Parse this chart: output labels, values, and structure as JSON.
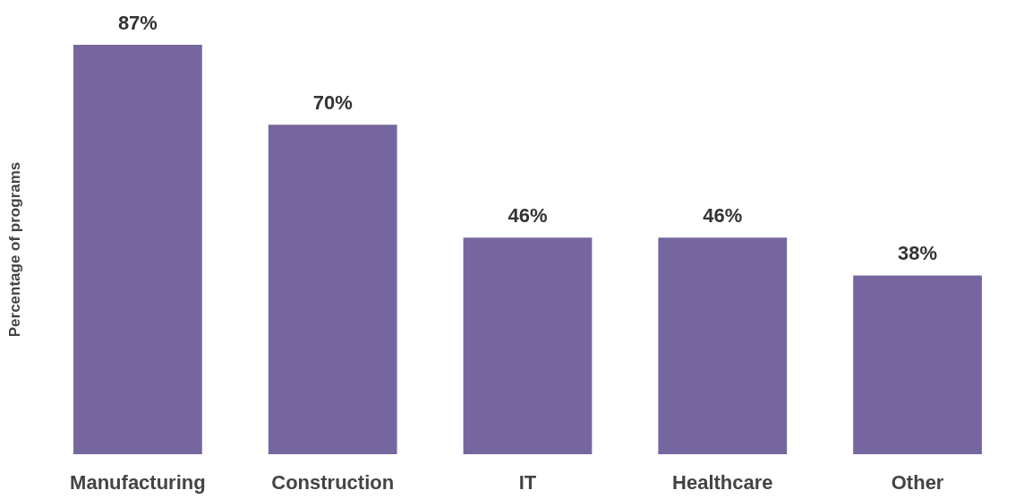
{
  "chart_data": {
    "type": "bar",
    "ylabel": "Percentage of programs",
    "categories": [
      "Manufacturing",
      "Construction",
      "IT",
      "Healthcare",
      "Other"
    ],
    "values": [
      87,
      70,
      46,
      46,
      38
    ],
    "value_labels": [
      "87%",
      "70%",
      "46%",
      "46%",
      "38%"
    ],
    "color": "#7566a0"
  }
}
